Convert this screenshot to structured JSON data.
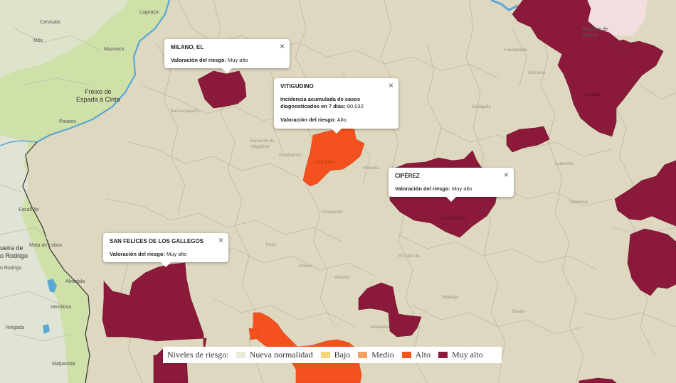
{
  "colors": {
    "background": "#ded8c0",
    "portugal": "#cfe0a8",
    "border": "#2e6b9e",
    "river": "#5aa7d4",
    "muy_alto": "#8b1a3a",
    "alto": "#f4511e",
    "medio": "#f4a261",
    "bajo": "#f7d774",
    "nueva_normalidad": "#e8ead8",
    "zamora": "#f2dede"
  },
  "places": [
    {
      "name": "Carviçais"
    },
    {
      "name": "Mós"
    },
    {
      "name": "Mazouco"
    },
    {
      "name": "Lagoaça"
    },
    {
      "name": "Freixo de\nEspada à Cinta"
    },
    {
      "name": "Poiares"
    },
    {
      "name": "Escalhão"
    },
    {
      "name": "Mata de Lobos"
    },
    {
      "name": "Almofala"
    },
    {
      "name": "Vermiosa"
    },
    {
      "name": "Reigada"
    },
    {
      "name": "Malpartida"
    },
    {
      "name": "Moraleja de\nSayago"
    },
    {
      "name": "Vitigudino"
    },
    {
      "name": "La Moraleja"
    },
    {
      "name": "Sayago"
    }
  ],
  "edge_labels": [
    {
      "name": "ueira de\no Rodrigo"
    },
    {
      "name": "o Rodrigo"
    }
  ],
  "popups": [
    {
      "title": "MILANO, EL",
      "risk_label": "Valoración del riesgo:",
      "risk": "Muy alto"
    },
    {
      "title": "VITIGUDINO",
      "incidence_label": "Incidencia acumulada de casos diagnosticados en 7 días:",
      "incidence": "80,032",
      "risk_label": "Valoración del riesgo:",
      "risk": "Alto"
    },
    {
      "title": "CIPÉREZ",
      "risk_label": "Valoración del riesgo:",
      "risk": "Muy alto"
    },
    {
      "title": "SAN FELICES DE LOS GALLEGOS",
      "risk_label": "Valoración del riesgo:",
      "risk": "Muy alto"
    }
  ],
  "close_symbol": "×",
  "legend": {
    "title": "Niveles de riesgo:",
    "items": [
      {
        "label": "Nueva normalidad",
        "color": "#e8ead8"
      },
      {
        "label": "Bajo",
        "color": "#f7d774"
      },
      {
        "label": "Medio",
        "color": "#f4a261"
      },
      {
        "label": "Alto",
        "color": "#f4511e"
      },
      {
        "label": "Muy alto",
        "color": "#8b1a3a"
      }
    ]
  }
}
